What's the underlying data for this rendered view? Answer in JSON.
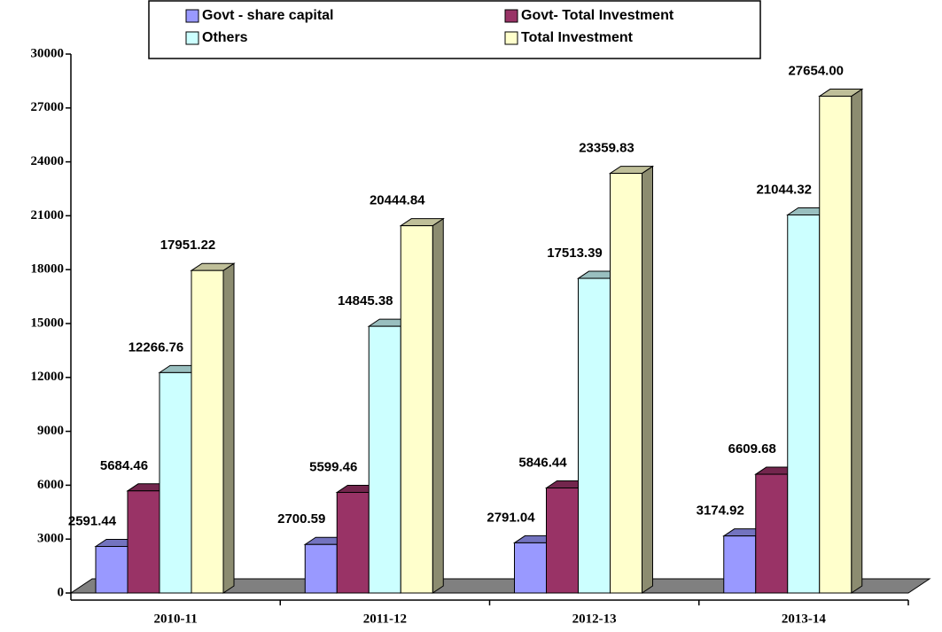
{
  "chart_data": {
    "type": "bar3d",
    "categories": [
      "2010-11",
      "2011-12",
      "2012-13",
      "2013-14"
    ],
    "series": [
      {
        "name": "Govt - share capital",
        "color": "#9999ff",
        "values": [
          2591.44,
          2700.59,
          2791.04,
          3174.92
        ],
        "value_labels": [
          "2591.44",
          "2700.59",
          "2791.04",
          "3174.92"
        ]
      },
      {
        "name": "Govt- Total Investment",
        "color": "#993366",
        "values": [
          5684.46,
          5599.46,
          5846.44,
          6609.68
        ],
        "value_labels": [
          "5684.46",
          "5599.46",
          "5846.44",
          "6609.68"
        ]
      },
      {
        "name": "Others",
        "color": "#ccffff",
        "values": [
          12266.76,
          14845.38,
          17513.39,
          21044.32
        ],
        "value_labels": [
          "12266.76",
          "14845.38",
          "17513.39",
          "21044.32"
        ]
      },
      {
        "name": "Total Investment",
        "color": "#ffffcc",
        "values": [
          17951.22,
          20444.84,
          23359.83,
          27654.0
        ],
        "value_labels": [
          "17951.22",
          "20444.84",
          "23359.83",
          "27654.00"
        ]
      }
    ],
    "ylim": [
      0,
      30000
    ],
    "yticks": [
      0,
      3000,
      6000,
      9000,
      12000,
      15000,
      18000,
      21000,
      24000,
      27000,
      30000
    ],
    "legend": "top"
  }
}
